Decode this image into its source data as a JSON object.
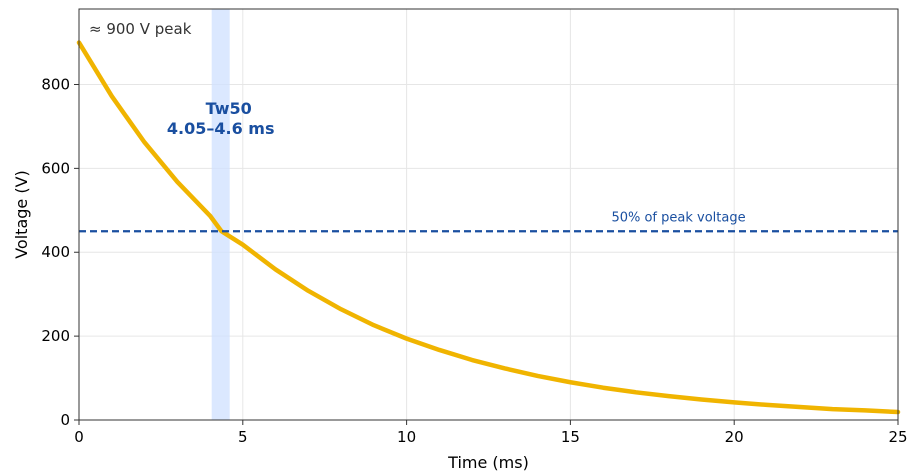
{
  "chart_data": {
    "type": "line",
    "xlabel": "Time (ms)",
    "ylabel": "Voltage (V)",
    "xlim": [
      0,
      25
    ],
    "ylim": [
      0,
      980
    ],
    "x_ticks": [
      0,
      5,
      10,
      15,
      20,
      25
    ],
    "y_ticks": [
      0,
      200,
      400,
      600,
      800
    ],
    "grid": true,
    "legend": "none",
    "series": [
      {
        "color": "#f0b400",
        "x": [
          0,
          1,
          2,
          3,
          4,
          4.35,
          5,
          6,
          7,
          8,
          9,
          10,
          11,
          12,
          13,
          14,
          15,
          16,
          17,
          18,
          19,
          20,
          21,
          22,
          23,
          24,
          25
        ],
        "y": [
          900,
          772,
          662,
          568,
          487,
          450,
          418,
          359,
          308,
          264,
          226,
          194,
          167,
          143,
          123,
          105,
          90,
          77,
          66,
          57,
          49,
          42,
          36,
          31,
          26,
          23,
          19
        ]
      }
    ],
    "reference_line": {
      "y": 450,
      "label": "50% of peak voltage",
      "color": "#1a4fa0",
      "style": "dashed"
    },
    "band": {
      "x_range": [
        4.05,
        4.6
      ],
      "label_line1": "Tw50",
      "label_line2": "4.05–4.6 ms",
      "fill_color": "#cfe0ff",
      "text_color": "#1a4fa0"
    },
    "corner_note": "≈ 900 V peak"
  }
}
